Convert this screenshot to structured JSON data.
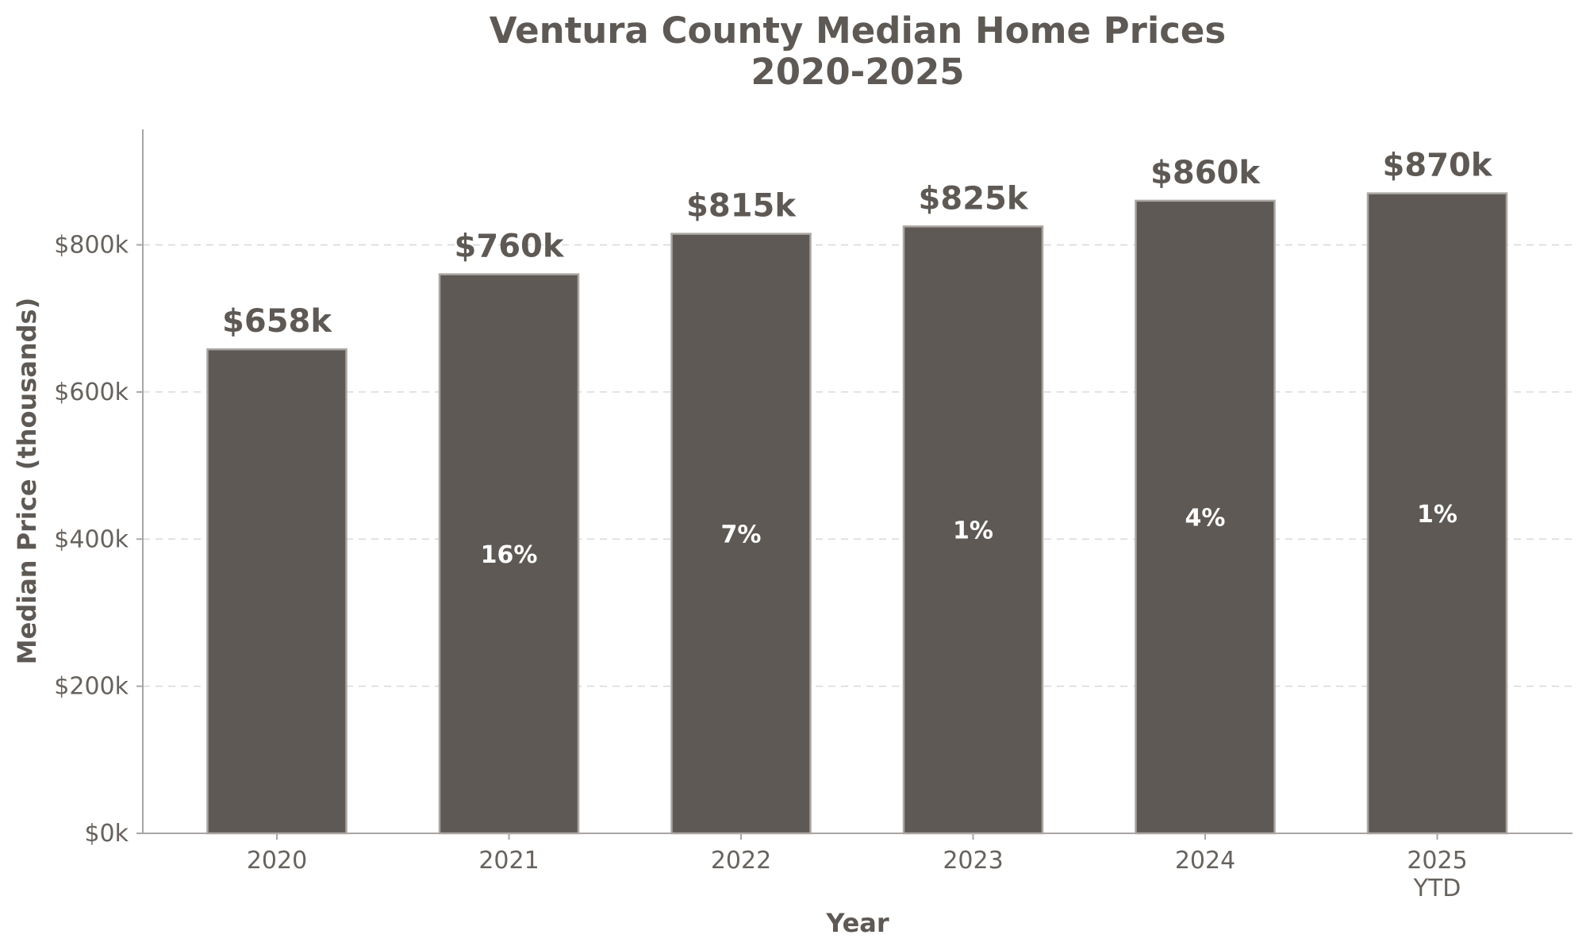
{
  "colors": {
    "bar": "#5e5954",
    "bar_edge": "#aaa6a2",
    "text": "#5e5954",
    "grid": "#d9d9d9",
    "pct_text": "#ffffff"
  },
  "chart_data": {
    "type": "bar",
    "title_lines": [
      "Ventura County Median Home Prices",
      "2020-2025"
    ],
    "xlabel": "Year",
    "ylabel": "Median Price (thousands)",
    "categories": [
      "2020",
      "2021",
      "2022",
      "2023",
      "2024",
      "2025\nYTD"
    ],
    "values": [
      658,
      760,
      815,
      825,
      860,
      870
    ],
    "value_labels": [
      "$658k",
      "$760k",
      "$815k",
      "$825k",
      "$860k",
      "$870k"
    ],
    "pct_labels": [
      "",
      "16%",
      "7%",
      "1%",
      "4%",
      "1%"
    ],
    "yticks": [
      0,
      200,
      400,
      600,
      800
    ],
    "ytick_labels": [
      "$0k",
      "$200k",
      "$400k",
      "$600k",
      "$800k"
    ],
    "ylim": [
      0,
      957
    ],
    "grid": true,
    "grid_axis": "y",
    "legend": "none"
  }
}
